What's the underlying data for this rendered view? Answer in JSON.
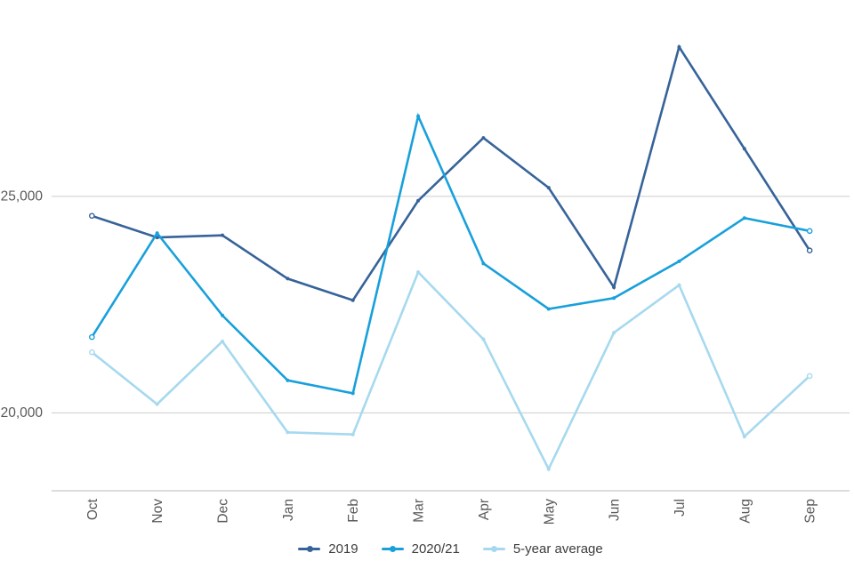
{
  "chart_data": {
    "type": "line",
    "categories": [
      "Oct",
      "Nov",
      "Dec",
      "Jan",
      "Feb",
      "Mar",
      "Apr",
      "May",
      "Jun",
      "Jul",
      "Aug",
      "Sep"
    ],
    "series": [
      {
        "name": "2019",
        "color": "#366399",
        "values": [
          24550,
          24050,
          24100,
          23100,
          22600,
          24900,
          26350,
          25200,
          22900,
          28450,
          26100,
          23750
        ]
      },
      {
        "name": "2020/21",
        "color": "#18A0DB",
        "values": [
          21750,
          24150,
          22250,
          20750,
          20450,
          26850,
          23450,
          22400,
          22650,
          23500,
          24500,
          24200
        ]
      },
      {
        "name": "5-year average",
        "color": "#A6D9EF",
        "values": [
          21400,
          20200,
          21650,
          19550,
          19500,
          23250,
          21700,
          18700,
          21850,
          22950,
          19450,
          20850
        ]
      }
    ],
    "yticks": [
      {
        "value": 20000,
        "label": "20,000"
      },
      {
        "value": 25000,
        "label": "25,000"
      }
    ],
    "ylim": [
      18200,
      29100
    ],
    "title": "",
    "xlabel": "",
    "ylabel": "",
    "grid": "horizontal gridlines at yticks only, bottom axis line, no vertical gridlines",
    "legend_position": "bottom-center",
    "x_label_rotation": -90
  },
  "style_colors": {
    "gridline": "#CCCCCC",
    "axis_line": "#C6C6C6",
    "tick_label": "#595959",
    "legend_text": "#3d3d3d",
    "background": "#FFFFFF"
  }
}
